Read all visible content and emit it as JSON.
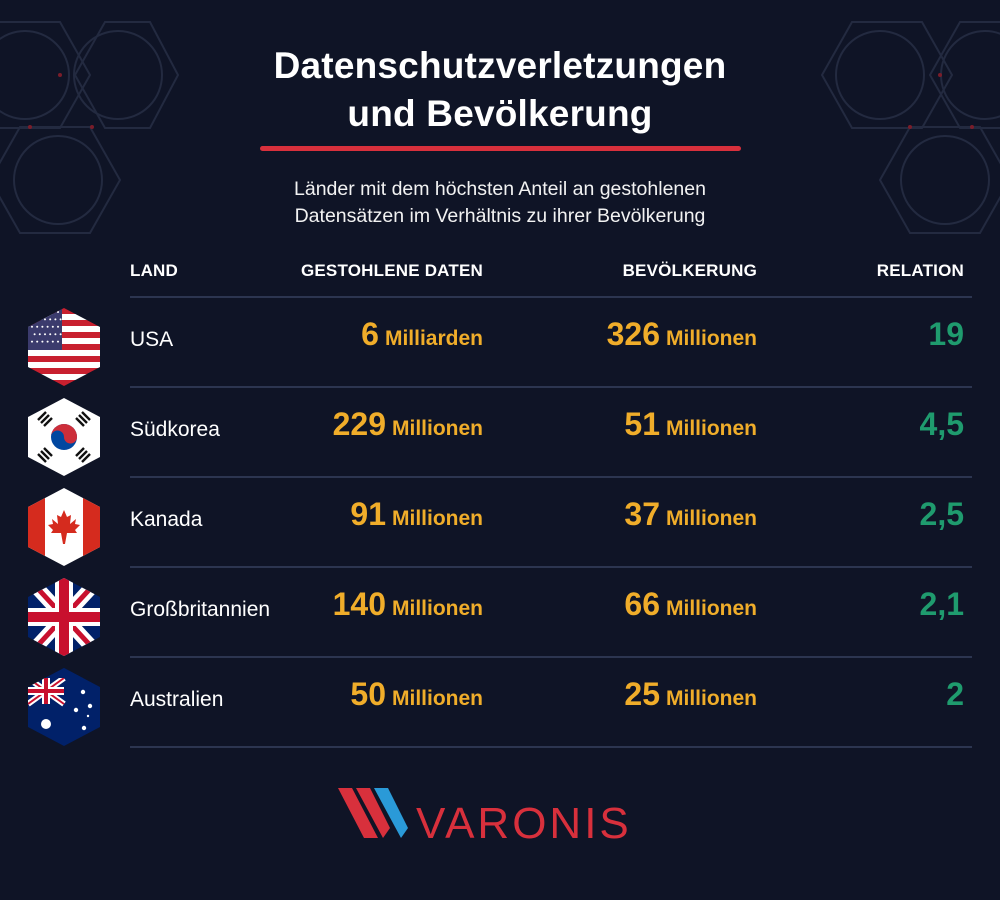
{
  "colors": {
    "background": "#0f1426",
    "accent_red": "#d8303c",
    "value_orange": "#f0ad2a",
    "ratio_green": "#1f9b6e",
    "divider": "#2c3550"
  },
  "header": {
    "title_line1": "Datenschutzverletzungen",
    "title_line2": "und Bevölkerung",
    "subtitle_line1": "Länder mit dem höchsten Anteil an gestohlenen",
    "subtitle_line2": "Datensätzen im Verhältnis zu ihrer Bevölkerung"
  },
  "columns": {
    "country": "LAND",
    "stolen": "GESTOHLENE DATEN",
    "population": "BEVÖLKERUNG",
    "ratio": "RELATION"
  },
  "chart_data": {
    "type": "table",
    "rows": [
      {
        "country": "USA",
        "flag_icon": "usa-flag-icon",
        "stolen_value": "6",
        "stolen_unit": "Milliarden",
        "population_value": "326",
        "population_unit": "Millionen",
        "ratio": "19"
      },
      {
        "country": "Südkorea",
        "flag_icon": "south-korea-flag-icon",
        "stolen_value": "229",
        "stolen_unit": "Millionen",
        "population_value": "51",
        "population_unit": "Millionen",
        "ratio": "4,5"
      },
      {
        "country": "Kanada",
        "flag_icon": "canada-flag-icon",
        "stolen_value": "91",
        "stolen_unit": "Millionen",
        "population_value": "37",
        "population_unit": "Millionen",
        "ratio": "2,5"
      },
      {
        "country": "Großbritannien",
        "flag_icon": "uk-flag-icon",
        "stolen_value": "140",
        "stolen_unit": "Millionen",
        "population_value": "66",
        "population_unit": "Millionen",
        "ratio": "2,1"
      },
      {
        "country": "Australien",
        "flag_icon": "australia-flag-icon",
        "stolen_value": "50",
        "stolen_unit": "Millionen",
        "population_value": "25",
        "population_unit": "Millionen",
        "ratio": "2"
      }
    ]
  },
  "footer": {
    "logo_text": "VARONIS"
  }
}
